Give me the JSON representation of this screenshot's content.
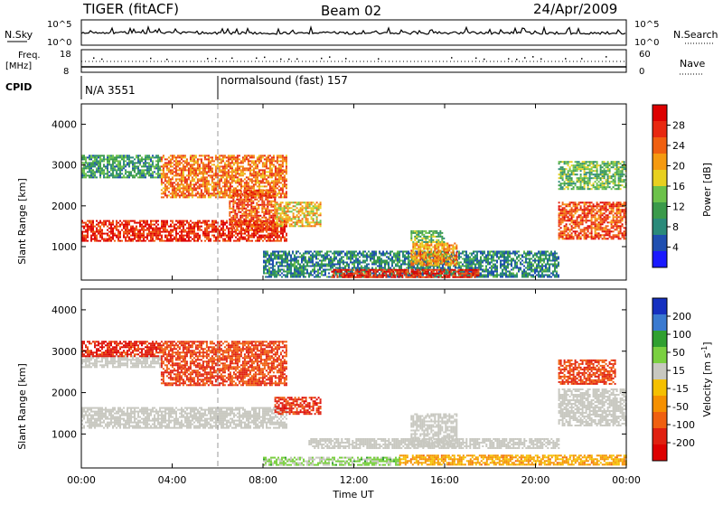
{
  "header": {
    "radar": "TIGER (fitACF)",
    "beam": "Beam 02",
    "date": "24/Apr/2009"
  },
  "strips": {
    "nsky_label": "N.Sky",
    "nsky_ticks": [
      "10^5",
      "10^0"
    ],
    "nsearch_label": "N.Search",
    "freq_label": "Freq.",
    "freq_unit": "[MHz]",
    "freq_ticks": [
      "18",
      "8"
    ],
    "nave_label": "Nave",
    "nave_ticks": [
      "60",
      "0"
    ],
    "cpid_label": "CPID",
    "cpid_items": [
      {
        "label": "N/A 3551",
        "start_hour": 0
      },
      {
        "label": "normalsound (fast) 157",
        "start_hour": 6
      }
    ]
  },
  "colors": {
    "power_scale": [
      "#1a1aff",
      "#1f4fb0",
      "#2a8a7a",
      "#3a9a4a",
      "#6cc24a",
      "#e8d020",
      "#f59a10",
      "#f06010",
      "#e82810",
      "#dd0000"
    ],
    "velocity_scale": [
      "#1530c0",
      "#3a7ad0",
      "#30a030",
      "#7ad040",
      "#c8c8c0",
      "#f5c000",
      "#f59000",
      "#f06010",
      "#e02010",
      "#dd0000"
    ],
    "ground_scatter": "#c8c8c0"
  },
  "chart_data": [
    {
      "type": "heatmap",
      "panel": "power",
      "ylabel": "Slant Range [km]",
      "xlabel": "",
      "xlim": [
        0,
        24
      ],
      "ylim": [
        180,
        4500
      ],
      "y_ticks": [
        "4000",
        "3000",
        "2000",
        "1000"
      ],
      "x_ticks": [
        "00:00",
        "04:00",
        "08:00",
        "12:00",
        "16:00",
        "20:00",
        "00:00"
      ],
      "colorbar_label": "Power [dB]",
      "colorbar_ticks": [
        "28",
        "24",
        "20",
        "16",
        "12",
        "8",
        "4"
      ],
      "clim": [
        0,
        30
      ],
      "regions": [
        {
          "t0": 0.0,
          "t1": 9.0,
          "r0": 1150,
          "r1": 1650,
          "v": 26
        },
        {
          "t0": 0.0,
          "t1": 3.5,
          "r0": 2700,
          "r1": 3250,
          "v": 10
        },
        {
          "t0": 3.5,
          "t1": 9.0,
          "r0": 2200,
          "r1": 3250,
          "v": 22
        },
        {
          "t0": 6.5,
          "t1": 8.5,
          "r0": 1400,
          "r1": 2400,
          "v": 24
        },
        {
          "t0": 8.5,
          "t1": 10.5,
          "r0": 1500,
          "r1": 2100,
          "v": 18
        },
        {
          "t0": 8.0,
          "t1": 21.0,
          "r0": 250,
          "r1": 900,
          "v": 8
        },
        {
          "t0": 14.5,
          "t1": 16.5,
          "r0": 550,
          "r1": 1100,
          "v": 20
        },
        {
          "t0": 14.5,
          "t1": 16.0,
          "r0": 1100,
          "r1": 1400,
          "v": 12
        },
        {
          "t0": 11.0,
          "t1": 17.5,
          "r0": 250,
          "r1": 450,
          "v": 26
        },
        {
          "t0": 21.0,
          "t1": 24.0,
          "r0": 1200,
          "r1": 2100,
          "v": 24
        },
        {
          "t0": 21.0,
          "t1": 24.0,
          "r0": 2400,
          "r1": 3100,
          "v": 12
        }
      ]
    },
    {
      "type": "heatmap",
      "panel": "velocity",
      "ylabel": "Slant Range [km]",
      "xlabel": "Time UT",
      "xlim": [
        0,
        24
      ],
      "ylim": [
        180,
        4500
      ],
      "y_ticks": [
        "4000",
        "3000",
        "2000",
        "1000"
      ],
      "x_ticks": [
        "00:00",
        "04:00",
        "08:00",
        "12:00",
        "16:00",
        "20:00",
        "00:00"
      ],
      "colorbar_label": "Velocity [m s-1]",
      "colorbar_ticks": [
        "200",
        "100",
        "50",
        "15",
        "-15",
        "-50",
        "-100",
        "-200"
      ],
      "clim": [
        -250,
        250
      ],
      "regions": [
        {
          "t0": 0.0,
          "t1": 9.0,
          "r0": 1150,
          "r1": 1650,
          "v": 0
        },
        {
          "t0": 0.0,
          "t1": 3.5,
          "r0": 2600,
          "r1": 2900,
          "v": 0
        },
        {
          "t0": 0.0,
          "t1": 3.5,
          "r0": 2900,
          "r1": 3250,
          "v": -180
        },
        {
          "t0": 3.5,
          "t1": 9.0,
          "r0": 2200,
          "r1": 3250,
          "v": -150
        },
        {
          "t0": 8.5,
          "t1": 10.5,
          "r0": 1500,
          "r1": 1900,
          "v": -170
        },
        {
          "t0": 10.0,
          "t1": 21.0,
          "r0": 650,
          "r1": 900,
          "v": 0
        },
        {
          "t0": 14.5,
          "t1": 16.5,
          "r0": 700,
          "r1": 1500,
          "v": 0
        },
        {
          "t0": 8.0,
          "t1": 14.0,
          "r0": 250,
          "r1": 450,
          "v": 60
        },
        {
          "t0": 14.0,
          "t1": 24.0,
          "r0": 250,
          "r1": 500,
          "v": -60
        },
        {
          "t0": 21.0,
          "t1": 24.0,
          "r0": 1200,
          "r1": 2100,
          "v": 0
        },
        {
          "t0": 21.0,
          "t1": 23.5,
          "r0": 2200,
          "r1": 2800,
          "v": -150
        }
      ]
    }
  ]
}
